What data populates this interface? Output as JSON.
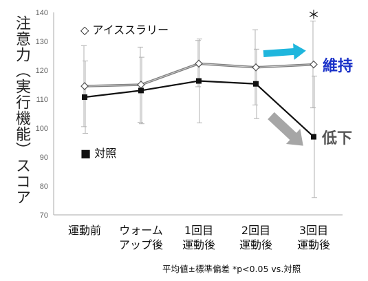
{
  "chart_data": {
    "type": "line",
    "ylabel": "注意力（実行機能）スコア",
    "ylim": [
      70,
      140
    ],
    "yticks": [
      70,
      80,
      90,
      100,
      110,
      120,
      130,
      140
    ],
    "categories": [
      [
        "運動前"
      ],
      [
        "ウォーム",
        "アップ後"
      ],
      [
        "1回目",
        "運動後"
      ],
      [
        "2回目",
        "運動後"
      ],
      [
        "3回目",
        "運動後"
      ]
    ],
    "series": [
      {
        "name": "◇ アイススラリー",
        "marker": "diamond-open",
        "color": "#808080",
        "values": [
          114.5,
          115,
          122.3,
          121,
          122
        ],
        "error": [
          14,
          13,
          8,
          13,
          15
        ]
      },
      {
        "name": "■ 対照",
        "marker": "square-filled",
        "color": "#111111",
        "values": [
          110.7,
          113,
          116.3,
          115.3,
          97
        ],
        "error": [
          12.5,
          11.5,
          14.5,
          12,
          21
        ]
      }
    ],
    "grid": false,
    "significance_mark": "＊",
    "annotations": {
      "maintain": "維持",
      "decline": "低下"
    },
    "footnote": "平均値±標準偏差 *p<0.05  vs.対照"
  },
  "colors": {
    "maintain_arrow": "#1fb6dd",
    "maintain_text": "#1a31c8",
    "decline_arrow": "#a6a6a6",
    "decline_text": "#555555"
  }
}
